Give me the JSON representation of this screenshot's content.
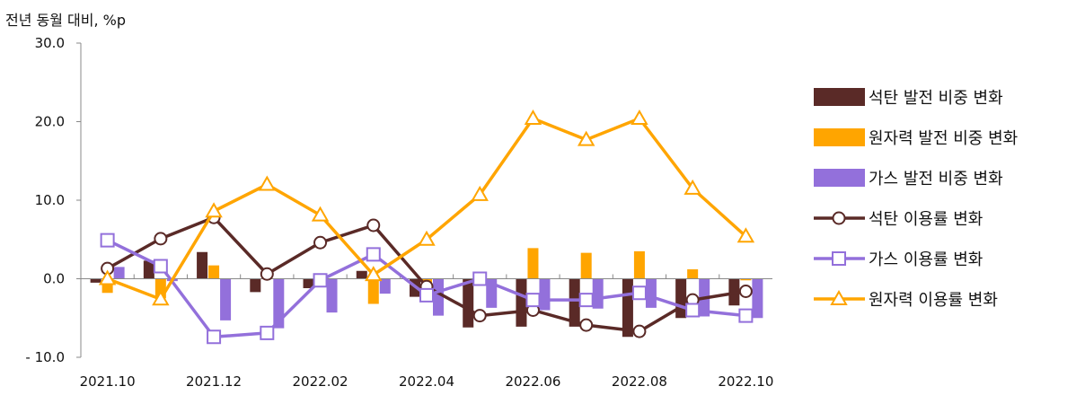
{
  "chart_data": {
    "type": "bar",
    "title": "",
    "ylabel": "전년 동월 대비, %p",
    "xlabel": "",
    "ylim": [
      -10,
      30
    ],
    "yticks": [
      30,
      20,
      10,
      0,
      -10
    ],
    "ytick_labels": [
      "30.0",
      "20.0",
      "10.0",
      "0.0",
      "- 10.0"
    ],
    "x": [
      "2021.10",
      "2021.11",
      "2021.12",
      "2022.01",
      "2022.02",
      "2022.03",
      "2022.04",
      "2022.05",
      "2022.06",
      "2022.07",
      "2022.08",
      "2022.09",
      "2022.10"
    ],
    "xtick_labels": [
      "2021.10",
      "",
      "2021.12",
      "",
      "2022.02",
      "",
      "2022.04",
      "",
      "2022.06",
      "",
      "2022.08",
      "",
      "2022.10"
    ],
    "legend_position": "right",
    "grid": false,
    "series": [
      {
        "name": "석탄 발전 비중 변화",
        "kind": "bar",
        "color": "#5a2a27",
        "values": [
          -0.5,
          2.3,
          3.4,
          -1.7,
          -1.2,
          1.0,
          -2.3,
          -6.2,
          -6.1,
          -6.1,
          -7.4,
          -5.0,
          -3.4
        ]
      },
      {
        "name": "원자력 발전 비중 변화",
        "kind": "bar",
        "color": "#ffa500",
        "values": [
          -1.8,
          -2.5,
          1.7,
          0.2,
          -1.0,
          -3.2,
          -0.6,
          -0.4,
          3.9,
          3.3,
          3.5,
          1.2,
          -0.2
        ]
      },
      {
        "name": "가스 발전 비중 변화",
        "kind": "bar",
        "color": "#9370db",
        "values": [
          1.5,
          -0.3,
          -5.3,
          -6.3,
          -4.3,
          -1.9,
          -4.7,
          -3.7,
          -4.0,
          -3.8,
          -3.7,
          -4.8,
          -5.0
        ]
      },
      {
        "name": "석탄 이용률 변화",
        "kind": "line",
        "marker": "circle",
        "color": "#5a2a27",
        "values": [
          1.3,
          5.1,
          7.8,
          0.6,
          4.6,
          6.8,
          -1.0,
          -4.7,
          -4.0,
          -5.9,
          -6.7,
          -2.7,
          -1.6
        ]
      },
      {
        "name": "가스 이용률 변화",
        "kind": "line",
        "marker": "square",
        "color": "#9370db",
        "values": [
          4.9,
          1.6,
          -7.4,
          -6.9,
          -0.2,
          3.1,
          -2.1,
          0.0,
          -2.7,
          -2.7,
          -1.8,
          -4.0,
          -4.7
        ]
      },
      {
        "name": "원자력 이용률 변화",
        "kind": "line",
        "marker": "triangle",
        "color": "#ffa500",
        "values": [
          0.0,
          -2.6,
          8.6,
          12.0,
          8.1,
          0.5,
          5.0,
          10.7,
          20.4,
          17.7,
          20.4,
          11.5,
          5.4
        ]
      }
    ]
  }
}
